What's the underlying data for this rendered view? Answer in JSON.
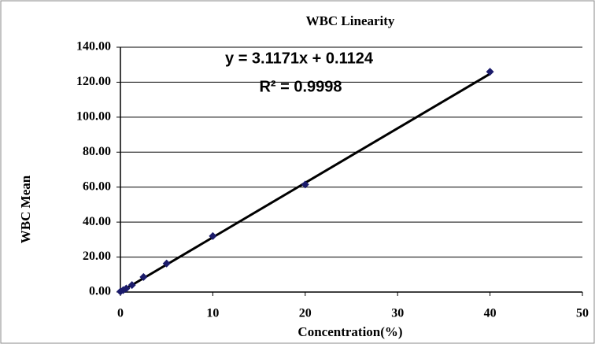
{
  "chart_data": {
    "type": "scatter",
    "title": "WBC Linearity",
    "x_label": "Concentration(%)",
    "y_label": "WBC Mean",
    "series": [
      {
        "name": "WBC",
        "color": "#1b1b6b",
        "x": [
          0,
          0.31,
          0.63,
          1.25,
          2.5,
          5,
          10,
          20,
          40
        ],
        "values": [
          0.3,
          1.1,
          2.0,
          4.0,
          8.6,
          16.3,
          32,
          61.5,
          126
        ]
      }
    ],
    "trendline": {
      "slope": 3.1171,
      "intercept": 0.1124,
      "equation": "y = 3.1171x + 0.1124",
      "r_squared": "R² = 0.9998"
    },
    "xlim": [
      0,
      50
    ],
    "xticks": [
      0,
      10,
      20,
      30,
      40,
      50
    ],
    "ylim": [
      0,
      140
    ],
    "yticks": [
      {
        "value": 0,
        "label": "0.00"
      },
      {
        "value": 20,
        "label": "20.00"
      },
      {
        "value": 40,
        "label": "40.00"
      },
      {
        "value": 60,
        "label": "60.00"
      },
      {
        "value": 80,
        "label": "80.00"
      },
      {
        "value": 100,
        "label": "100.00"
      },
      {
        "value": 120,
        "label": "120.00"
      },
      {
        "value": 140,
        "label": "140.00"
      }
    ],
    "grid": true
  }
}
